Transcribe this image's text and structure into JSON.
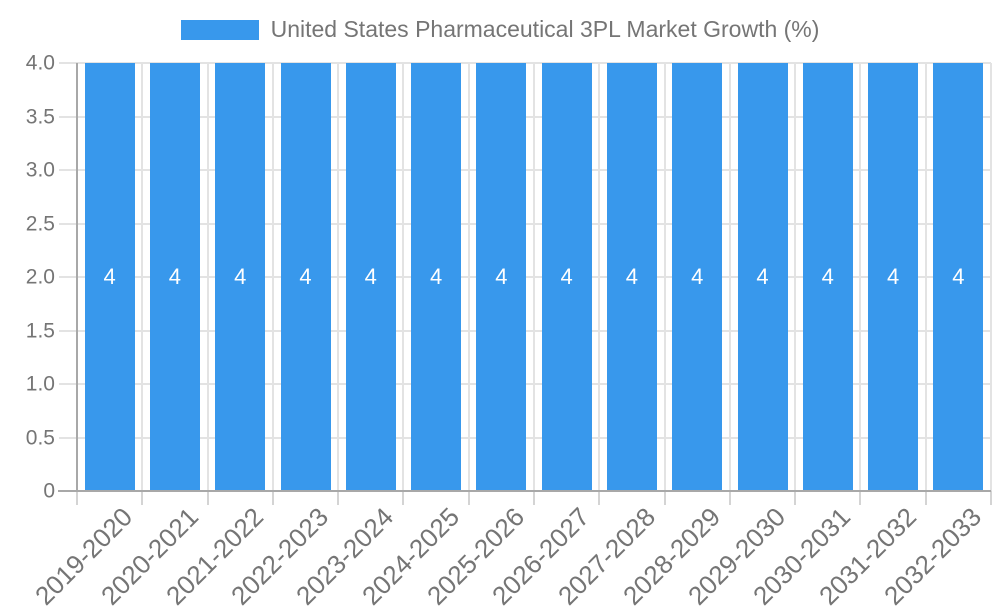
{
  "chart_data": {
    "type": "bar",
    "series_name": "United States Pharmaceutical 3PL Market Growth (%)",
    "legend_position": "top",
    "categories": [
      "2019-2020",
      "2020-2021",
      "2021-2022",
      "2022-2023",
      "2023-2024",
      "2024-2025",
      "2025-2026",
      "2026-2027",
      "2027-2028",
      "2028-2029",
      "2029-2030",
      "2030-2031",
      "2031-2032",
      "2032-2033"
    ],
    "values": [
      4,
      4,
      4,
      4,
      4,
      4,
      4,
      4,
      4,
      4,
      4,
      4,
      4,
      4
    ],
    "bar_label_values": [
      "4",
      "4",
      "4",
      "4",
      "4",
      "4",
      "4",
      "4",
      "4",
      "4",
      "4",
      "4",
      "4",
      "4"
    ],
    "xlabel": "",
    "ylabel": "",
    "ylim": [
      0,
      4
    ],
    "yticks": [
      {
        "value": 0,
        "label": "0"
      },
      {
        "value": 0.5,
        "label": "0.5"
      },
      {
        "value": 1,
        "label": "1.0"
      },
      {
        "value": 1.5,
        "label": "1.5"
      },
      {
        "value": 2,
        "label": "2.0"
      },
      {
        "value": 2.5,
        "label": "2.5"
      },
      {
        "value": 3,
        "label": "3.0"
      },
      {
        "value": 3.5,
        "label": "3.5"
      },
      {
        "value": 4,
        "label": "4.0"
      }
    ],
    "grid": true,
    "colors": {
      "bar": "#3898ec",
      "bar_label": "#ffffff",
      "text": "#757575",
      "grid": "#e3e3e3",
      "axis": "#a8a8a8",
      "tick_mark": "#d4d4d4",
      "background": "#ffffff"
    }
  }
}
